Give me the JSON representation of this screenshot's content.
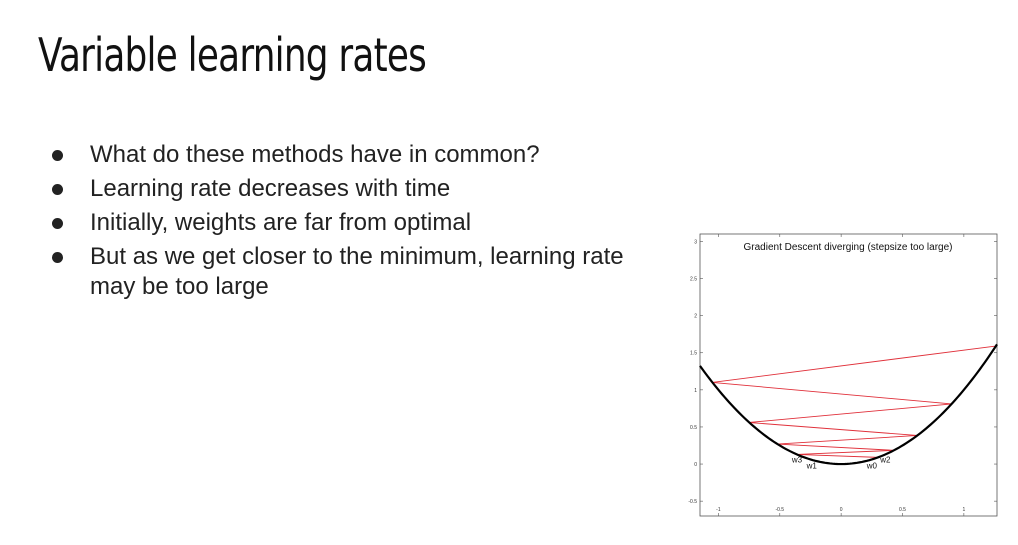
{
  "slide": {
    "title": "Variable learning rates",
    "bullets": [
      "What do these methods have in common?",
      "Learning rate decreases with time",
      "Initially, weights are far from optimal",
      "But as we get closer to the minimum, learning rate may be too large"
    ]
  },
  "figure": {
    "title": "Gradient Descent diverging (stepsize too large)",
    "x_ticks": [
      "-1",
      "-0.5",
      "0",
      "0.5",
      "1"
    ],
    "y_ticks": [
      "3",
      "2.5",
      "2",
      "1.5",
      "1",
      "0.5",
      "0",
      "-0.5"
    ],
    "curve_color": "#000000",
    "step_color": "#e0303a",
    "labels": [
      {
        "text": "w3",
        "x": -0.36,
        "y": 0.02
      },
      {
        "text": "w1",
        "x": -0.24,
        "y": -0.06
      },
      {
        "text": "w0",
        "x": 0.25,
        "y": -0.06
      },
      {
        "text": "w2",
        "x": 0.36,
        "y": 0.02
      }
    ],
    "iterates": [
      [
        0.3,
        0.09
      ],
      [
        -0.36,
        0.13
      ],
      [
        0.43,
        0.185
      ],
      [
        -0.52,
        0.27
      ],
      [
        0.62,
        0.385
      ],
      [
        -0.75,
        0.56
      ],
      [
        0.9,
        0.81
      ],
      [
        -1.05,
        1.1
      ],
      [
        1.26,
        1.59
      ]
    ],
    "xlim": [
      -1.15,
      1.27
    ],
    "ylim": [
      -0.7,
      3.1
    ]
  }
}
